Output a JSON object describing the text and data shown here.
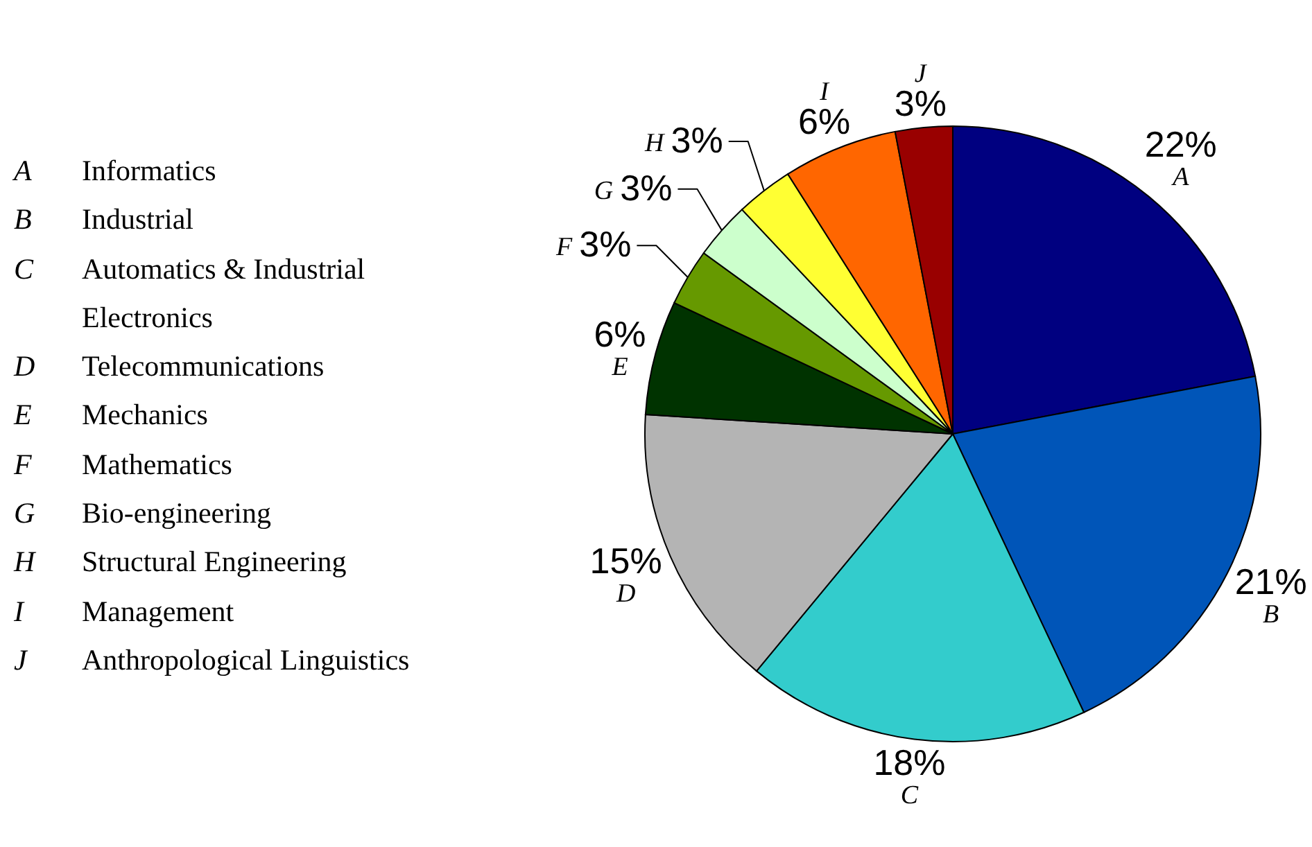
{
  "chart_data": {
    "type": "pie",
    "categories": [
      "A",
      "B",
      "C",
      "D",
      "E",
      "F",
      "G",
      "H",
      "I",
      "J"
    ],
    "values": [
      22,
      21,
      18,
      15,
      6,
      3,
      3,
      3,
      6,
      3
    ],
    "colors": [
      "#000080",
      "#0055b8",
      "#33cccc",
      "#b4b4b4",
      "#003300",
      "#669900",
      "#ccffcc",
      "#ffff33",
      "#ff6600",
      "#990000"
    ],
    "value_labels": [
      "22%",
      "21%",
      "18%",
      "15%",
      "6%",
      "3%",
      "3%",
      "3%",
      "6%",
      "3%"
    ],
    "annotations": [
      "Informatics",
      "Industrial",
      "Automatics & Industrial Electronics",
      "Telecommunications",
      "Mechanics",
      "Mathematics",
      "Bio-engineering",
      "Structural Engineering",
      "Management",
      "Anthropological Linguistics"
    ]
  }
}
